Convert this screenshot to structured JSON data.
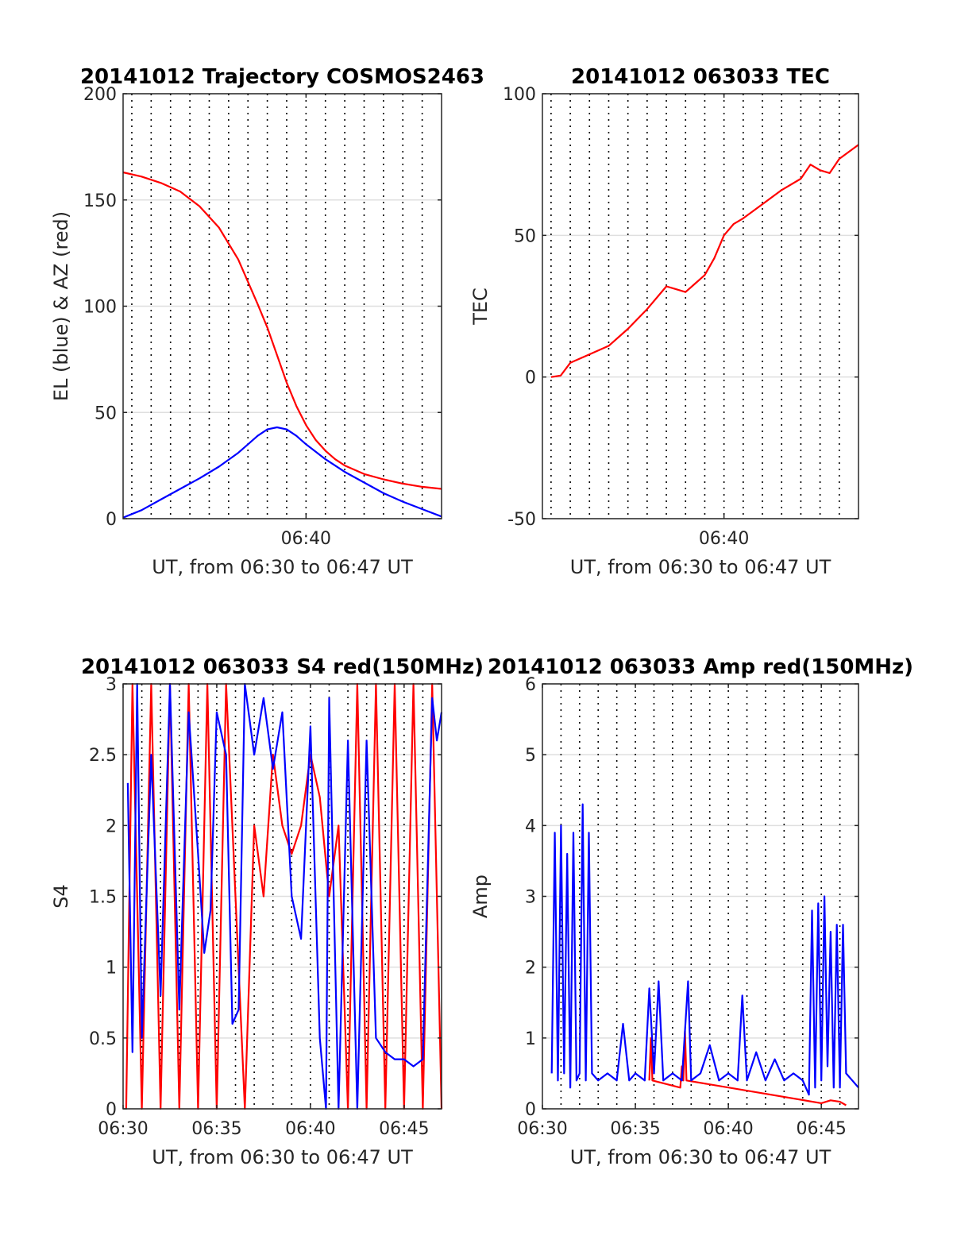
{
  "chart_data": [
    {
      "type": "line",
      "title": "20141012 Trajectory COSMOS2463",
      "xlabel": "UT, from 06:30 to 06:47 UT",
      "ylabel": "EL (blue) & AZ (red)",
      "xlim": [
        "06:30:33",
        "06:47:00"
      ],
      "ylim": [
        0,
        200
      ],
      "yticks": [
        "0",
        "50",
        "100",
        "150",
        "200"
      ],
      "xticks": [
        {
          "time": "06:40",
          "label": "06:40"
        }
      ],
      "grid": true,
      "series": [
        {
          "color": "#ff0000",
          "x": [
            "06:30:33",
            "06:31:30",
            "06:32:30",
            "06:33:30",
            "06:34:30",
            "06:35:30",
            "06:36:30",
            "06:37:30",
            "06:38:00",
            "06:38:30",
            "06:39:00",
            "06:39:30",
            "06:40:00",
            "06:40:30",
            "06:41:00",
            "06:41:30",
            "06:42:00",
            "06:43:00",
            "06:44:00",
            "06:45:00",
            "06:46:00",
            "06:47:00"
          ],
          "values": [
            163,
            161,
            158,
            154,
            147,
            137,
            122,
            101,
            90,
            77,
            64,
            53,
            44,
            37,
            32,
            28,
            25,
            21,
            18.5,
            16.5,
            15,
            14
          ]
        },
        {
          "color": "#0000ff",
          "x": [
            "06:30:33",
            "06:31:30",
            "06:32:30",
            "06:33:30",
            "06:34:30",
            "06:35:30",
            "06:36:30",
            "06:37:00",
            "06:37:30",
            "06:38:00",
            "06:38:30",
            "06:39:00",
            "06:39:30",
            "06:40:00",
            "06:40:30",
            "06:41:00",
            "06:42:00",
            "06:43:00",
            "06:44:00",
            "06:45:00",
            "06:46:00",
            "06:47:00"
          ],
          "values": [
            0.5,
            4,
            9,
            14,
            19,
            24.5,
            31,
            35,
            39,
            42,
            43,
            42,
            39,
            35,
            31.5,
            28,
            22,
            17,
            12,
            8,
            4.5,
            1
          ]
        }
      ]
    },
    {
      "type": "line",
      "title": "20141012 063033 TEC",
      "xlabel": "UT, from 06:30 to 06:47 UT",
      "ylabel": "TEC",
      "xlim": [
        "06:30:33",
        "06:47:00"
      ],
      "ylim": [
        -50,
        100
      ],
      "yticks": [
        "-50",
        "0",
        "50",
        "100"
      ],
      "xticks": [
        {
          "time": "06:40",
          "label": "06:40"
        }
      ],
      "grid": true,
      "series": [
        {
          "color": "#ff0000",
          "x": [
            "06:31:00",
            "06:31:30",
            "06:32:00",
            "06:33:00",
            "06:34:00",
            "06:35:00",
            "06:36:00",
            "06:37:00",
            "06:37:30",
            "06:38:00",
            "06:38:30",
            "06:39:00",
            "06:39:30",
            "06:40:00",
            "06:40:30",
            "06:41:00",
            "06:42:00",
            "06:43:00",
            "06:44:00",
            "06:44:30",
            "06:45:00",
            "06:45:30",
            "06:46:00",
            "06:47:00"
          ],
          "values": [
            0,
            0.5,
            5,
            8,
            11,
            17,
            24,
            32,
            31,
            30,
            33,
            36,
            42,
            50,
            54,
            56,
            61,
            66,
            70,
            75,
            73,
            72,
            77,
            82
          ]
        }
      ]
    },
    {
      "type": "line",
      "title": "20141012 063033 S4 red(150MHz)",
      "xlabel": "UT, from 06:30 to 06:47 UT",
      "ylabel": "S4",
      "xlim": [
        "06:30:00",
        "06:47:00"
      ],
      "ylim": [
        0,
        3
      ],
      "yticks": [
        "0",
        "0.5",
        "1",
        "1.5",
        "2",
        "2.5",
        "3"
      ],
      "xticks": [
        {
          "time": "06:30",
          "label": "06:30"
        },
        {
          "time": "06:35",
          "label": "06:35"
        },
        {
          "time": "06:40",
          "label": "06:40"
        },
        {
          "time": "06:45",
          "label": "06:45"
        }
      ],
      "grid": true,
      "series": [
        {
          "color": "#ff0000",
          "x": [
            "06:30:10",
            "06:30:30",
            "06:31:00",
            "06:31:30",
            "06:32:00",
            "06:32:30",
            "06:33:00",
            "06:33:30",
            "06:34:00",
            "06:34:30",
            "06:35:00",
            "06:35:30",
            "06:36:00",
            "06:36:30",
            "06:37:00",
            "06:37:30",
            "06:38:00",
            "06:38:30",
            "06:39:00",
            "06:39:30",
            "06:40:00",
            "06:40:30",
            "06:41:00",
            "06:41:30",
            "06:42:00",
            "06:42:30",
            "06:43:00",
            "06:43:30",
            "06:44:00",
            "06:44:30",
            "06:45:00",
            "06:45:30",
            "06:46:00",
            "06:46:30",
            "06:47:00"
          ],
          "values": [
            0,
            3,
            0,
            3,
            0,
            3,
            0,
            3,
            0,
            3,
            0,
            3,
            1.5,
            0,
            2,
            1.5,
            2.5,
            2,
            1.8,
            2,
            2.5,
            2.2,
            1.5,
            2,
            0,
            3,
            0,
            3,
            0,
            3,
            0,
            3,
            0,
            3,
            0
          ]
        },
        {
          "color": "#0000ff",
          "x": [
            "06:30:15",
            "06:30:30",
            "06:30:45",
            "06:31:00",
            "06:31:30",
            "06:32:00",
            "06:32:30",
            "06:33:00",
            "06:33:30",
            "06:34:00",
            "06:34:20",
            "06:34:40",
            "06:35:00",
            "06:35:30",
            "06:35:50",
            "06:36:10",
            "06:36:30",
            "06:37:00",
            "06:37:30",
            "06:38:00",
            "06:38:30",
            "06:39:00",
            "06:39:30",
            "06:40:00",
            "06:40:30",
            "06:40:50",
            "06:41:00",
            "06:41:30",
            "06:42:00",
            "06:42:30",
            "06:43:00",
            "06:43:30",
            "06:44:00",
            "06:44:30",
            "06:45:00",
            "06:45:30",
            "06:46:00",
            "06:46:30",
            "06:46:45",
            "06:47:00"
          ],
          "values": [
            2.3,
            0.4,
            3,
            0.5,
            2.5,
            0.8,
            3,
            0.7,
            2.8,
            1.8,
            1.1,
            1.4,
            2.8,
            2.5,
            0.6,
            0.7,
            3,
            2.5,
            2.9,
            2.4,
            2.8,
            1.5,
            1.2,
            2.7,
            0.5,
            0,
            2.9,
            0,
            2.6,
            0,
            2.6,
            0.5,
            0.4,
            0.35,
            0.35,
            0.3,
            0.35,
            2.9,
            2.6,
            2.8
          ]
        }
      ]
    },
    {
      "type": "line",
      "title": "20141012 063033 Amp red(150MHz)",
      "xlabel": "UT, from 06:30 to 06:47 UT",
      "ylabel": "Amp",
      "xlim": [
        "06:30:00",
        "06:47:00"
      ],
      "ylim": [
        0,
        6
      ],
      "yticks": [
        "0",
        "1",
        "2",
        "3",
        "4",
        "5",
        "6"
      ],
      "xticks": [
        {
          "time": "06:30",
          "label": "06:30"
        },
        {
          "time": "06:35",
          "label": "06:35"
        },
        {
          "time": "06:40",
          "label": "06:40"
        },
        {
          "time": "06:45",
          "label": "06:45"
        }
      ],
      "grid": true,
      "series": [
        {
          "color": "#ff0000",
          "x": [
            "06:35:45",
            "06:35:50",
            "06:35:55",
            "06:37:25",
            "06:37:30",
            "06:37:35",
            "06:37:40",
            "06:37:45",
            "06:45:00",
            "06:45:30",
            "06:46:00",
            "06:46:20"
          ],
          "values": [
            0.4,
            1.0,
            0.4,
            0.3,
            0.6,
            0.4,
            1.1,
            0.4,
            0.08,
            0.12,
            0.1,
            0.05
          ]
        },
        {
          "color": "#0000ff",
          "x": [
            "06:30:30",
            "06:30:40",
            "06:30:50",
            "06:31:00",
            "06:31:10",
            "06:31:20",
            "06:31:30",
            "06:31:40",
            "06:31:50",
            "06:32:00",
            "06:32:10",
            "06:32:20",
            "06:32:30",
            "06:32:40",
            "06:33:00",
            "06:33:30",
            "06:34:00",
            "06:34:20",
            "06:34:40",
            "06:35:00",
            "06:35:30",
            "06:35:45",
            "06:36:00",
            "06:36:15",
            "06:36:30",
            "06:37:00",
            "06:37:30",
            "06:37:50",
            "06:38:00",
            "06:38:30",
            "06:39:00",
            "06:39:30",
            "06:40:00",
            "06:40:30",
            "06:40:45",
            "06:41:00",
            "06:41:30",
            "06:42:00",
            "06:42:30",
            "06:43:00",
            "06:43:30",
            "06:44:00",
            "06:44:20",
            "06:44:30",
            "06:44:40",
            "06:44:50",
            "06:45:00",
            "06:45:10",
            "06:45:20",
            "06:45:30",
            "06:45:40",
            "06:45:50",
            "06:46:00",
            "06:46:10",
            "06:46:20",
            "06:46:40",
            "06:47:00"
          ],
          "values": [
            0.5,
            3.9,
            0.4,
            4.0,
            0.5,
            3.6,
            0.3,
            3.9,
            0.4,
            0.5,
            4.3,
            0.4,
            3.9,
            0.5,
            0.4,
            0.5,
            0.4,
            1.2,
            0.4,
            0.5,
            0.4,
            1.7,
            0.5,
            1.8,
            0.4,
            0.5,
            0.4,
            1.8,
            0.4,
            0.5,
            0.9,
            0.4,
            0.5,
            0.4,
            1.6,
            0.4,
            0.8,
            0.4,
            0.7,
            0.4,
            0.5,
            0.4,
            0.2,
            2.8,
            0.3,
            2.9,
            0.4,
            3.0,
            0.6,
            2.5,
            0.3,
            2.6,
            0.3,
            2.6,
            0.5,
            0.4,
            0.3
          ]
        }
      ]
    }
  ]
}
